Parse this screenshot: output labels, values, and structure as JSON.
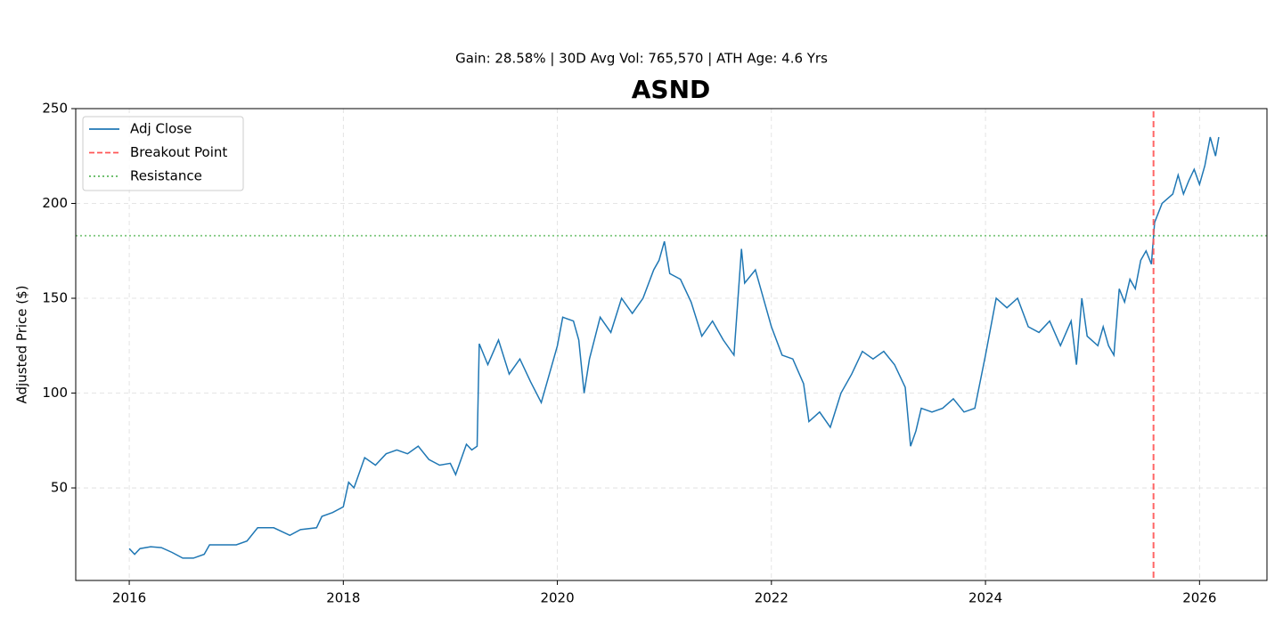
{
  "chart_data": {
    "type": "line",
    "subtitle": "Gain: 28.58% | 30D Avg Vol: 765,570 | ATH Age: 4.6 Yrs",
    "title": "ASND",
    "y_label": "Adjusted Price ($)",
    "xlim": [
      2015.5,
      2026.63
    ],
    "ylim": [
      1.2,
      250
    ],
    "xticks": [
      2016,
      2018,
      2020,
      2022,
      2024,
      2026
    ],
    "yticks": [
      50,
      100,
      150,
      200,
      250
    ],
    "grid": true,
    "legend": "upper left",
    "x": [
      2016.0,
      2016.05,
      2016.1,
      2016.2,
      2016.3,
      2016.4,
      2016.5,
      2016.6,
      2016.7,
      2016.75,
      2016.9,
      2017.0,
      2017.1,
      2017.2,
      2017.35,
      2017.5,
      2017.6,
      2017.75,
      2017.8,
      2017.9,
      2018.0,
      2018.05,
      2018.1,
      2018.2,
      2018.3,
      2018.4,
      2018.5,
      2018.6,
      2018.7,
      2018.8,
      2018.9,
      2019.0,
      2019.05,
      2019.15,
      2019.2,
      2019.25,
      2019.27,
      2019.35,
      2019.45,
      2019.55,
      2019.65,
      2019.75,
      2019.85,
      2019.95,
      2020.0,
      2020.05,
      2020.15,
      2020.2,
      2020.25,
      2020.3,
      2020.4,
      2020.5,
      2020.6,
      2020.7,
      2020.8,
      2020.9,
      2020.95,
      2021.0,
      2021.05,
      2021.15,
      2021.25,
      2021.35,
      2021.45,
      2021.55,
      2021.65,
      2021.72,
      2021.75,
      2021.85,
      2021.95,
      2022.0,
      2022.1,
      2022.2,
      2022.3,
      2022.35,
      2022.45,
      2022.55,
      2022.65,
      2022.75,
      2022.85,
      2022.95,
      2023.05,
      2023.15,
      2023.25,
      2023.3,
      2023.35,
      2023.4,
      2023.5,
      2023.6,
      2023.7,
      2023.8,
      2023.9,
      2024.0,
      2024.05,
      2024.1,
      2024.2,
      2024.3,
      2024.4,
      2024.5,
      2024.6,
      2024.7,
      2024.8,
      2024.85,
      2024.9,
      2024.95,
      2025.05,
      2025.1,
      2025.15,
      2025.2,
      2025.25,
      2025.3,
      2025.35,
      2025.4,
      2025.45,
      2025.5,
      2025.55,
      2025.58,
      2025.65,
      2025.75,
      2025.8,
      2025.85,
      2025.9,
      2025.95,
      2026.0,
      2026.05,
      2026.1,
      2026.15,
      2026.18
    ],
    "series": [
      {
        "name": "Adj Close",
        "color": "#1f77b4",
        "values": [
          18,
          15,
          18,
          19,
          18.5,
          16,
          13,
          13,
          15,
          20,
          20,
          20,
          22,
          29,
          29,
          25,
          28,
          29,
          35,
          37,
          40,
          53,
          50,
          66,
          62,
          68,
          70,
          68,
          72,
          65,
          62,
          63,
          57,
          73,
          70,
          72,
          126,
          115,
          128,
          110,
          118,
          106,
          95,
          115,
          125,
          140,
          138,
          128,
          100,
          118,
          140,
          132,
          150,
          142,
          150,
          165,
          170,
          180,
          163,
          160,
          148,
          130,
          138,
          128,
          120,
          176,
          158,
          165,
          145,
          135,
          120,
          118,
          105,
          85,
          90,
          82,
          100,
          110,
          122,
          118,
          122,
          115,
          103,
          72,
          80,
          92,
          90,
          92,
          97,
          90,
          92,
          120,
          135,
          150,
          145,
          150,
          135,
          132,
          138,
          125,
          138,
          115,
          150,
          130,
          125,
          135,
          125,
          120,
          155,
          148,
          160,
          155,
          170,
          175,
          168,
          190,
          200,
          205,
          215,
          205,
          212,
          218,
          210,
          220,
          235,
          225,
          235
        ]
      }
    ],
    "breakout": {
      "name": "Breakout Point",
      "x": 2025.57,
      "color": "#ff5555"
    },
    "resistance": {
      "name": "Resistance",
      "value": 183,
      "color": "#5cb85c"
    }
  }
}
